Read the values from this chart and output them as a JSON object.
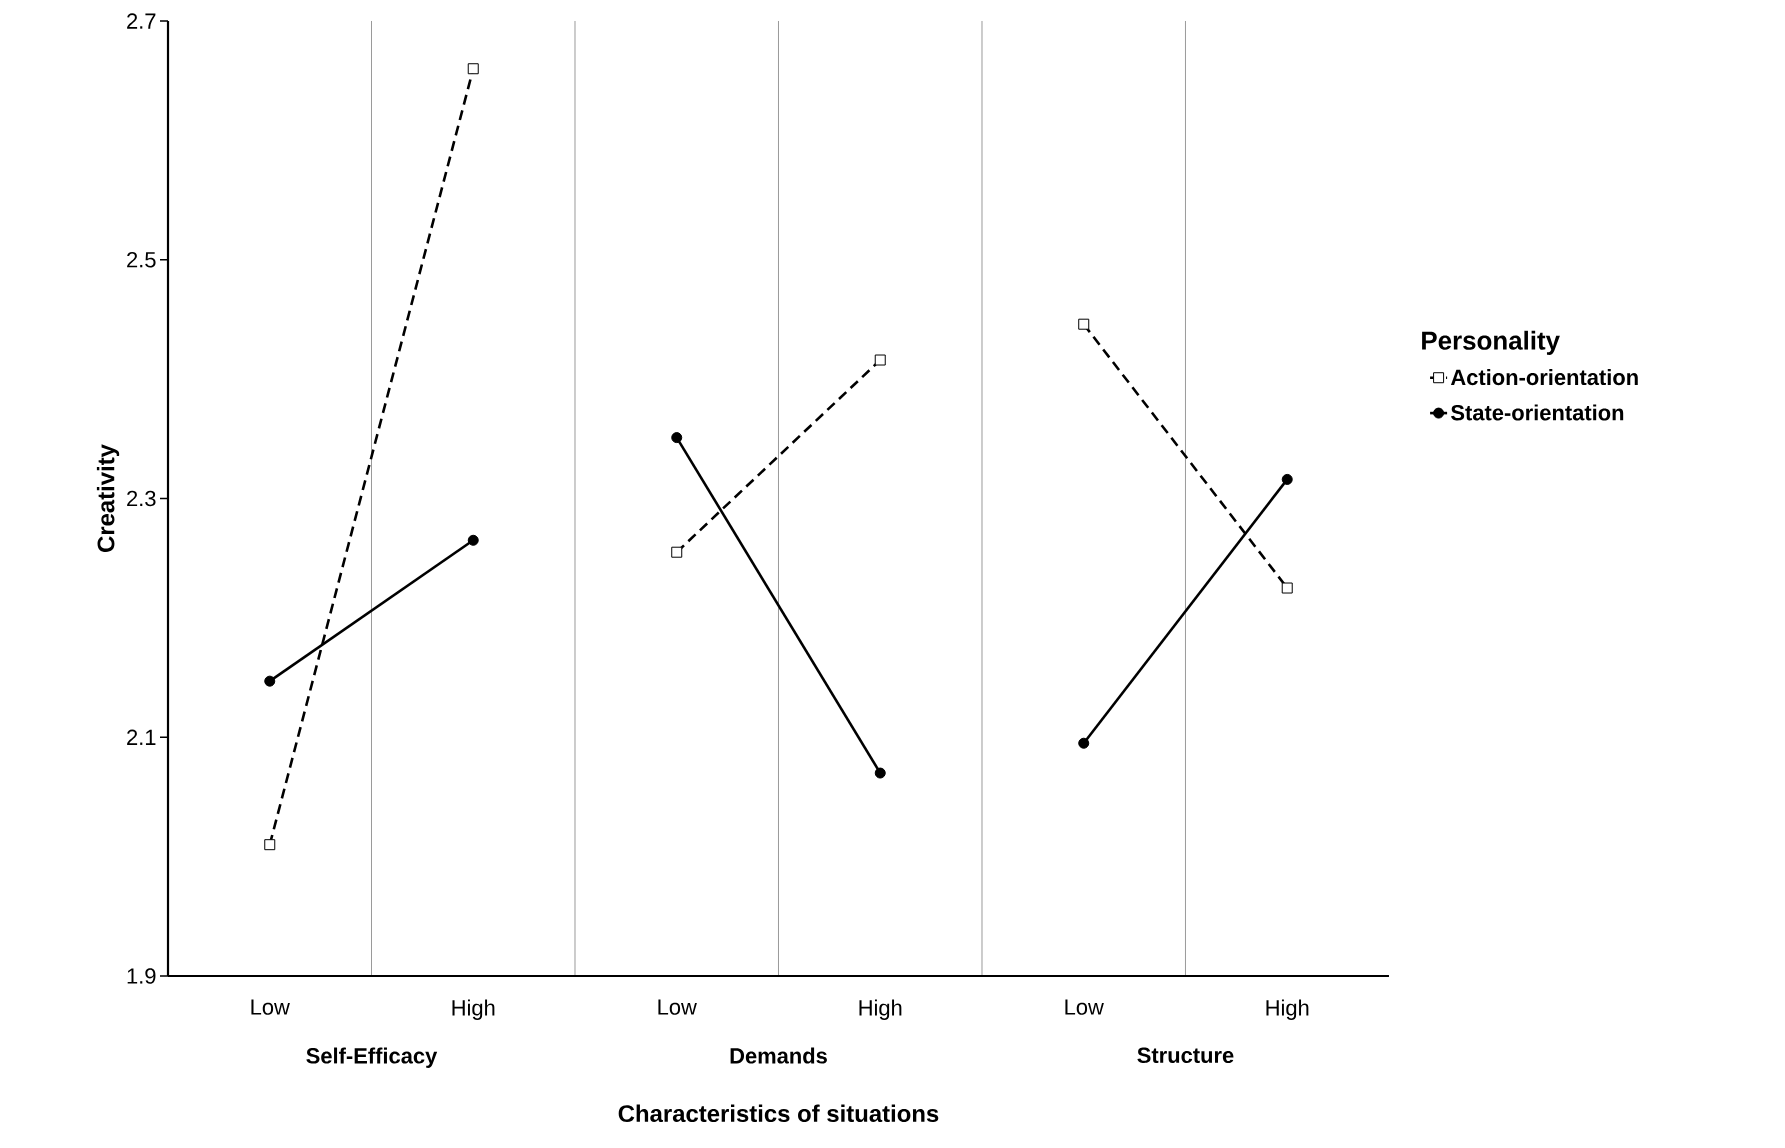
{
  "chart_data": {
    "type": "line",
    "xlabel": "Characteristics of situations",
    "ylabel": "Creativity",
    "legend_title": "Personality",
    "categories": [
      "Low",
      "High",
      "Low",
      "High",
      "Low",
      "High"
    ],
    "annotations": [
      "Self-Efficacy",
      "Demands",
      "Structure"
    ],
    "series": [
      {
        "name": "Action-orientation",
        "color": "#000000",
        "marker": "square",
        "line_style": "dashed",
        "values": [
          2.01,
          2.66,
          2.255,
          2.416,
          2.446,
          2.225
        ]
      },
      {
        "name": "State-orientation",
        "color": "#000000",
        "marker": "circle",
        "line_style": "solid",
        "values": [
          2.147,
          2.265,
          2.351,
          2.07,
          2.095,
          2.316
        ]
      }
    ],
    "ylim": [
      1.9,
      2.7
    ],
    "yticks": [
      1.9,
      2.1,
      2.3,
      2.5,
      2.7
    ],
    "grid": "x",
    "legend": "right"
  }
}
